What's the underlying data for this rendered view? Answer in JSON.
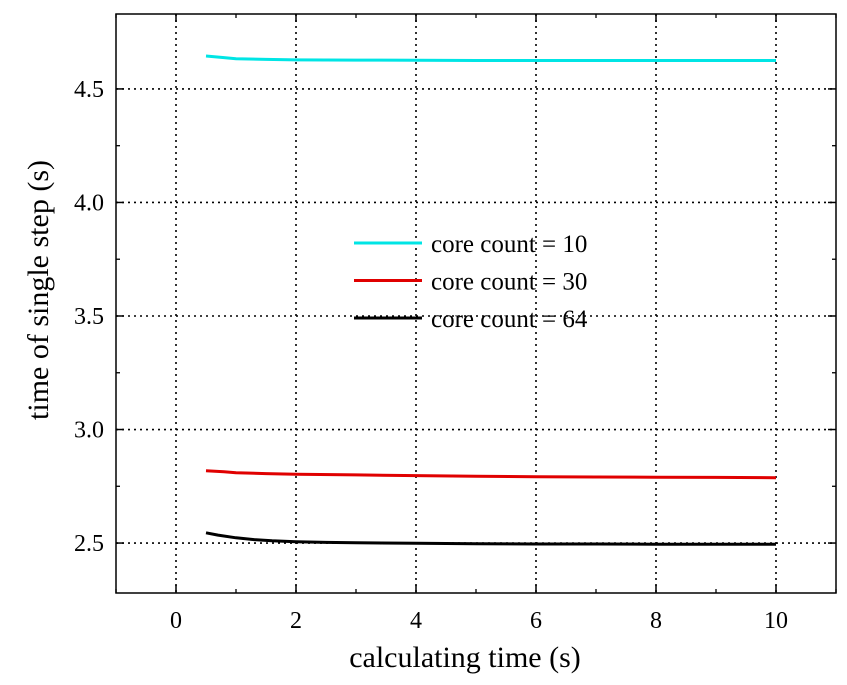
{
  "chart_data": {
    "type": "line",
    "title": "",
    "xlabel": "calculating time (s)",
    "ylabel": "time of single step (s)",
    "xlim": [
      -1,
      11
    ],
    "ylim": [
      2.28,
      4.83
    ],
    "xticks": [
      0,
      2,
      4,
      6,
      8,
      10
    ],
    "xtick_labels": [
      "0",
      "2",
      "4",
      "6",
      "8",
      "10"
    ],
    "yticks": [
      2.5,
      3.0,
      3.5,
      4.0,
      4.5
    ],
    "ytick_labels": [
      "2.5",
      "3.0",
      "3.5",
      "4.0",
      "4.5"
    ],
    "grid": true,
    "legend_position": "center",
    "series": [
      {
        "name": "core count = 10",
        "color": "#00e5e5",
        "x": [
          0.5,
          0.8,
          1.0,
          1.5,
          2.0,
          3.0,
          4.0,
          5.0,
          6.0,
          7.0,
          8.0,
          9.0,
          10.0
        ],
        "y": [
          4.645,
          4.638,
          4.633,
          4.63,
          4.628,
          4.627,
          4.626,
          4.625,
          4.625,
          4.625,
          4.625,
          4.625,
          4.625
        ]
      },
      {
        "name": "core count = 30",
        "color": "#e00000",
        "x": [
          0.5,
          0.8,
          1.0,
          1.5,
          2.0,
          3.0,
          4.0,
          5.0,
          6.0,
          7.0,
          8.0,
          9.0,
          10.0
        ],
        "y": [
          2.818,
          2.814,
          2.81,
          2.806,
          2.803,
          2.8,
          2.797,
          2.794,
          2.792,
          2.791,
          2.79,
          2.789,
          2.788
        ]
      },
      {
        "name": "core count = 64",
        "color": "#000000",
        "x": [
          0.5,
          0.7,
          1.0,
          1.3,
          1.6,
          2.0,
          2.5,
          3.0,
          4.0,
          5.0,
          6.0,
          7.0,
          8.0,
          9.0,
          10.0
        ],
        "y": [
          2.545,
          2.535,
          2.523,
          2.515,
          2.51,
          2.506,
          2.503,
          2.501,
          2.499,
          2.497,
          2.496,
          2.496,
          2.495,
          2.495,
          2.495
        ]
      }
    ]
  }
}
